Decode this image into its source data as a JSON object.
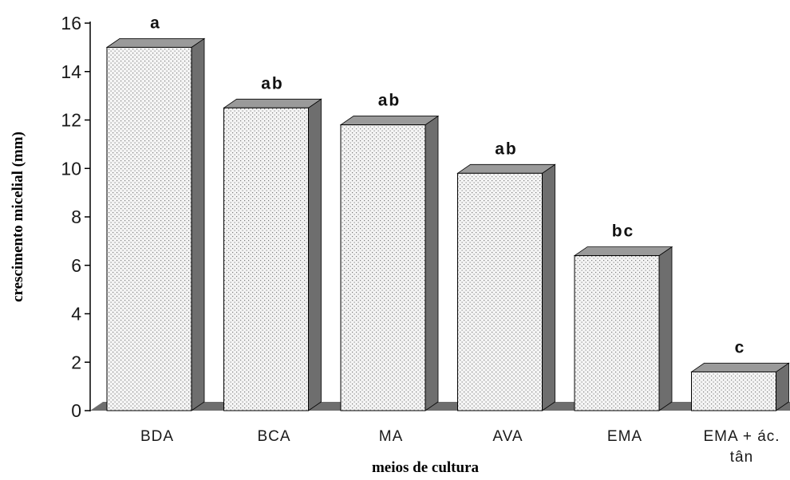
{
  "chart_data": {
    "type": "bar",
    "title": "",
    "xlabel": "meios de cultura",
    "ylabel": "crescimento micelial (mm)",
    "ylim": [
      0,
      16
    ],
    "yticks": [
      0,
      2,
      4,
      6,
      8,
      10,
      12,
      14,
      16
    ],
    "grid": false,
    "three_d": true,
    "categories": [
      [
        "BDA"
      ],
      [
        "BCA"
      ],
      [
        "MA"
      ],
      [
        "AVA"
      ],
      [
        "EMA"
      ],
      [
        "EMA + ác.",
        "tân"
      ]
    ],
    "values": [
      15.0,
      12.5,
      11.8,
      9.8,
      6.4,
      1.6
    ],
    "significance_letters": [
      "a",
      "ab",
      "ab",
      "ab",
      "bc",
      "c"
    ],
    "colors": {
      "bar_face": "#f4f4f4",
      "bar_dots": "#7a7a7a",
      "bar_top": "#9a9a9a",
      "bar_side": "#6e6e6e",
      "floor": "#6e6e6e",
      "axis": "#000000"
    }
  }
}
